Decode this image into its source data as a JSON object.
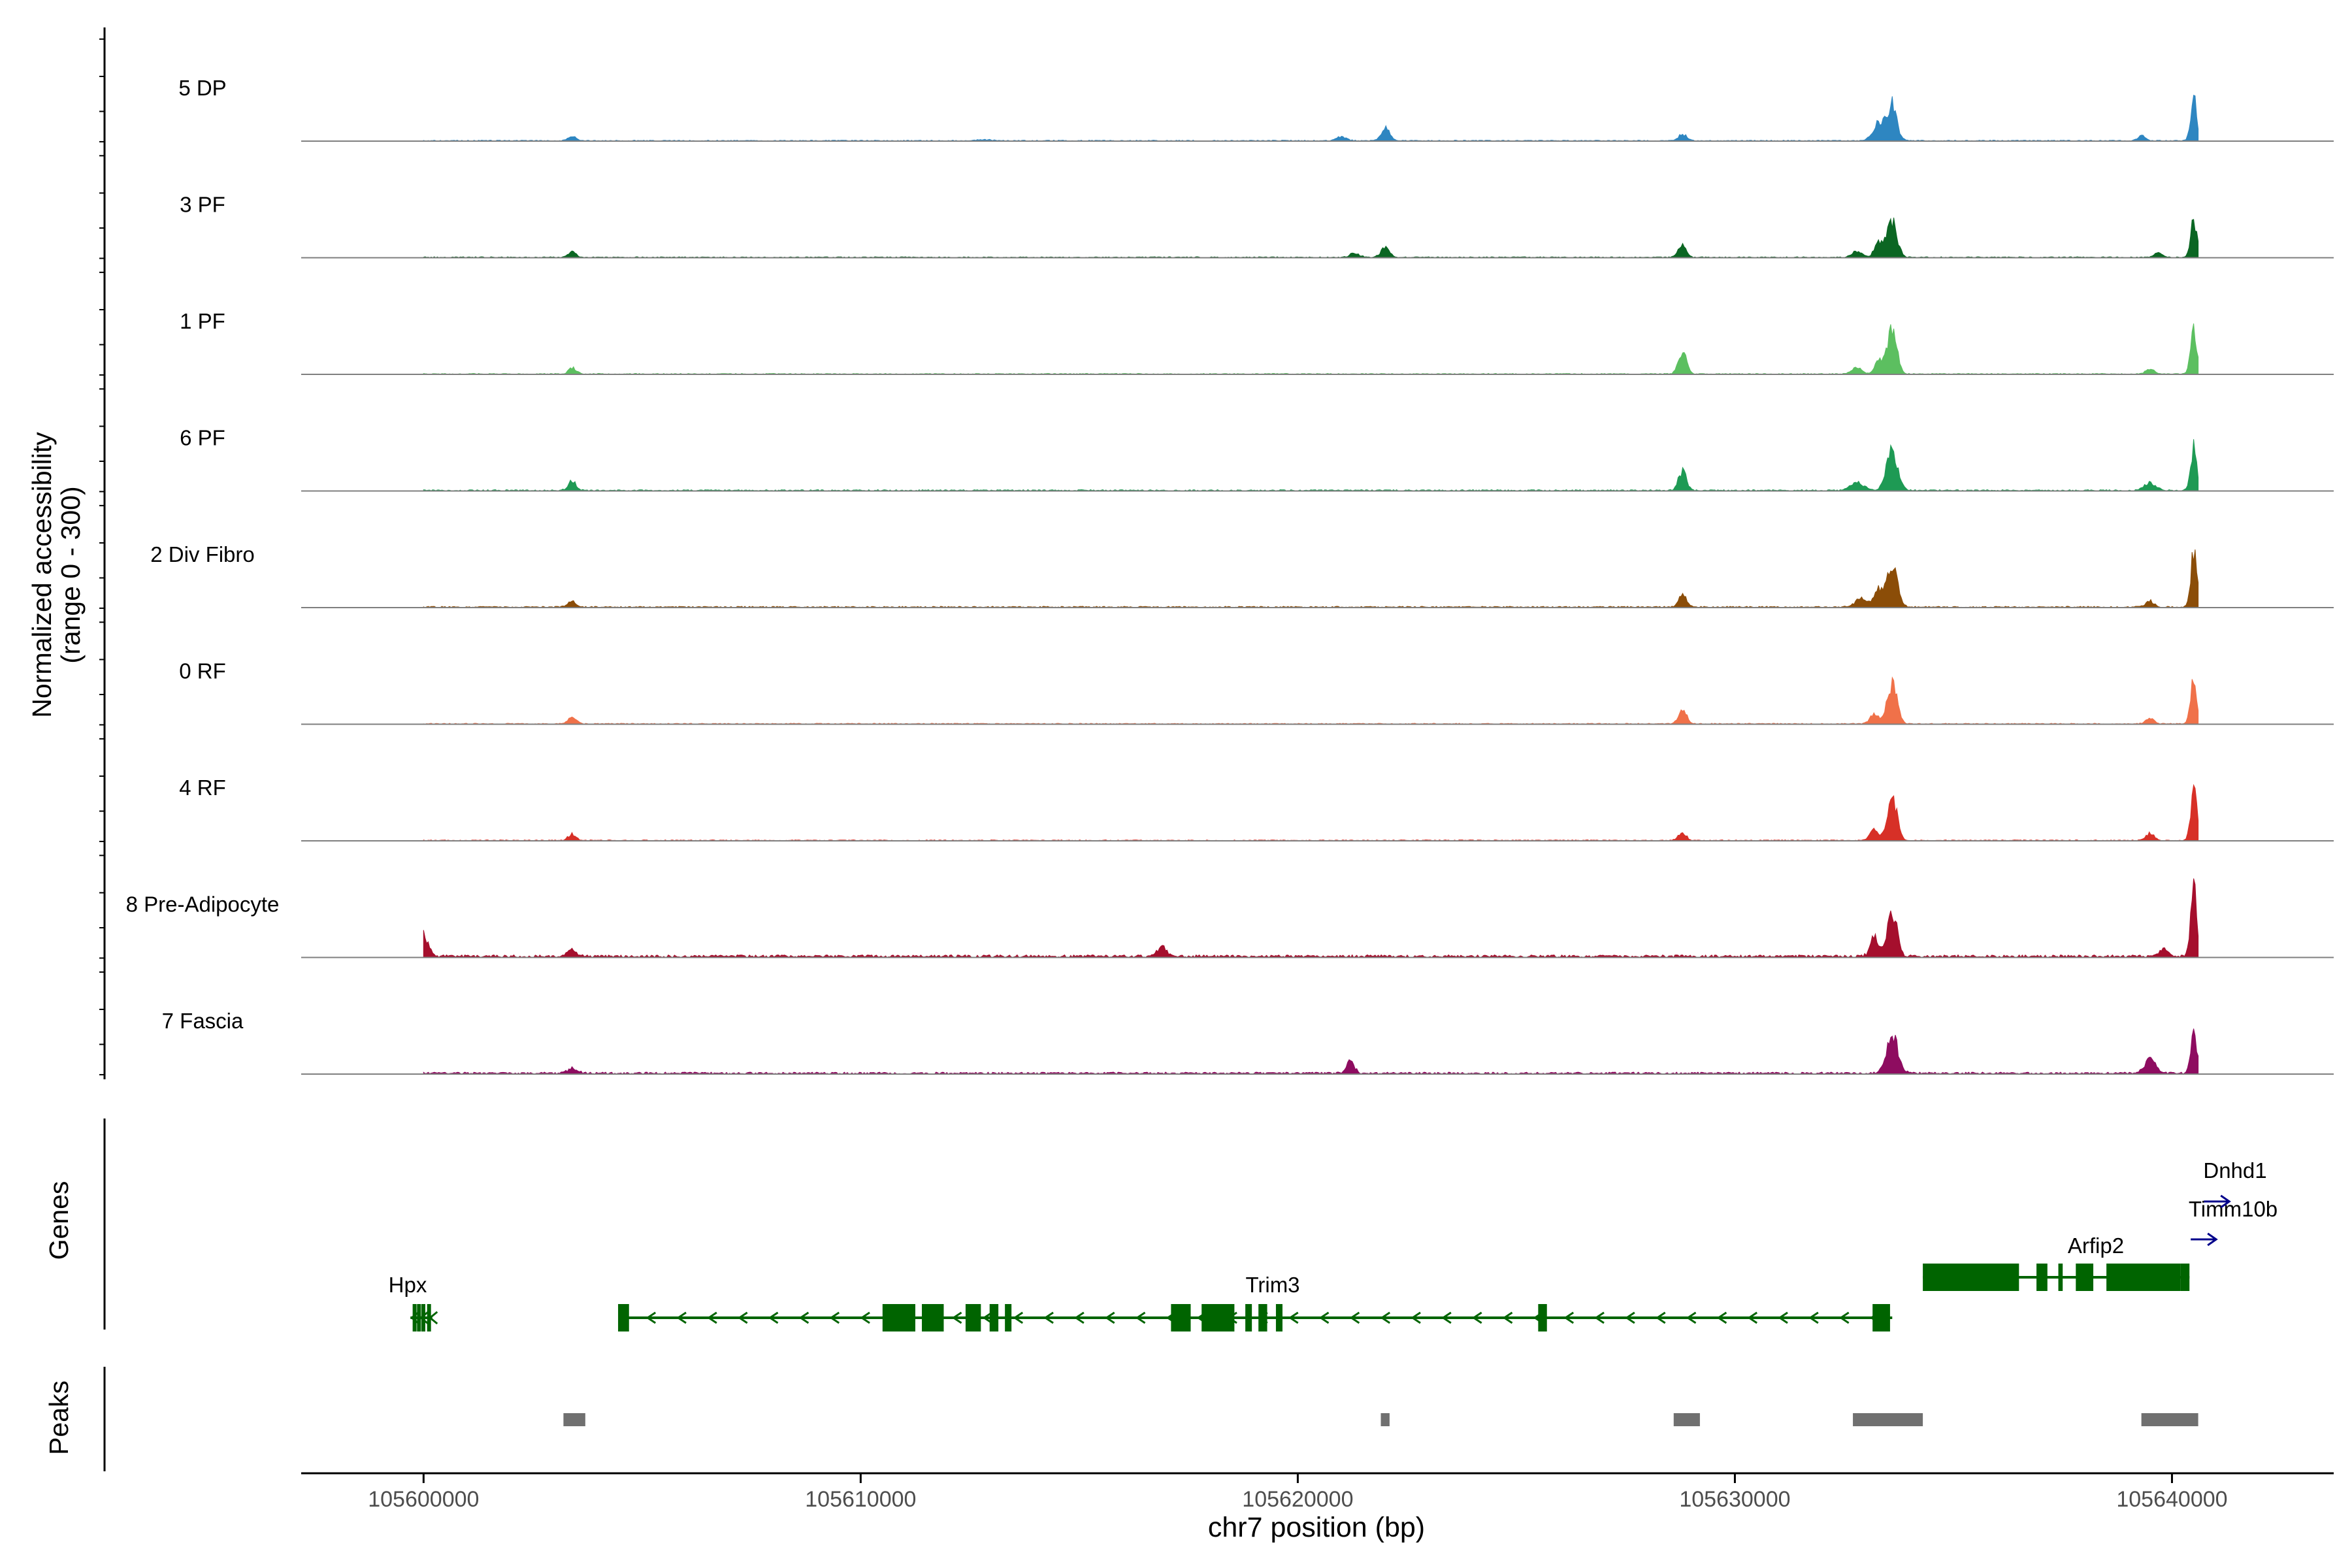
{
  "chart_data": {
    "type": "area",
    "title": "",
    "chromosome": "chr7",
    "region": [
      105597200,
      105643700
    ],
    "xlabel": "chr7 position (bp)",
    "ylabel_line1": "Normalized accessibility",
    "ylabel_line2": "(range 0 - 300)",
    "ylim": [
      0,
      300
    ],
    "x_ticks": [
      105600000,
      105610000,
      105620000,
      105630000,
      105640000
    ],
    "x_tick_labels": [
      "105600000",
      "105610000",
      "105620000",
      "105630000",
      "105640000"
    ],
    "baseline_noise": 3,
    "tracks": [
      {
        "name": "5 DP",
        "color": "#2E86C1",
        "noise": 3,
        "peaks": [
          [
            105603400,
            14,
            90
          ],
          [
            105612800,
            4,
            150
          ],
          [
            105621000,
            13,
            110
          ],
          [
            105622000,
            38,
            100
          ],
          [
            105628800,
            20,
            90
          ],
          [
            105633300,
            58,
            130
          ],
          [
            105633600,
            105,
            110
          ],
          [
            105639300,
            16,
            90
          ],
          [
            105640500,
            130,
            70
          ]
        ]
      },
      {
        "name": "3 PF",
        "color": "#0B6623",
        "noise": 3,
        "peaks": [
          [
            105603400,
            17,
            90
          ],
          [
            105621300,
            12,
            110
          ],
          [
            105622000,
            28,
            100
          ],
          [
            105628800,
            40,
            90
          ],
          [
            105632800,
            20,
            110
          ],
          [
            105633300,
            45,
            100
          ],
          [
            105633600,
            115,
            110
          ],
          [
            105639700,
            14,
            90
          ],
          [
            105640500,
            115,
            70
          ]
        ]
      },
      {
        "name": "1 PF",
        "color": "#5CBF60",
        "noise": 3,
        "peaks": [
          [
            105603400,
            18,
            90
          ],
          [
            105628800,
            65,
            90
          ],
          [
            105632800,
            20,
            110
          ],
          [
            105633300,
            40,
            100
          ],
          [
            105633600,
            128,
            110
          ],
          [
            105639500,
            16,
            90
          ],
          [
            105640500,
            135,
            70
          ]
        ]
      },
      {
        "name": "6 PF",
        "color": "#1E9A54",
        "noise": 4,
        "peaks": [
          [
            105603400,
            30,
            90
          ],
          [
            105628800,
            58,
            90
          ],
          [
            105632800,
            25,
            140
          ],
          [
            105633600,
            115,
            130
          ],
          [
            105639500,
            22,
            130
          ],
          [
            105640500,
            135,
            70
          ]
        ]
      },
      {
        "name": "2 Div Fibro",
        "color": "#8B4D08",
        "noise": 4,
        "peaks": [
          [
            105603400,
            18,
            90
          ],
          [
            105628800,
            38,
            90
          ],
          [
            105632900,
            25,
            140
          ],
          [
            105633300,
            50,
            100
          ],
          [
            105633600,
            125,
            120
          ],
          [
            105639500,
            18,
            90
          ],
          [
            105640500,
            170,
            70
          ]
        ]
      },
      {
        "name": "0 RF",
        "color": "#F07149",
        "noise": 3,
        "peaks": [
          [
            105603400,
            22,
            90
          ],
          [
            105628800,
            45,
            90
          ],
          [
            105633200,
            30,
            100
          ],
          [
            105633600,
            125,
            110
          ],
          [
            105639500,
            18,
            90
          ],
          [
            105640500,
            130,
            70
          ]
        ]
      },
      {
        "name": "4 RF",
        "color": "#D73027",
        "noise": 3,
        "peaks": [
          [
            105603400,
            20,
            90
          ],
          [
            105628800,
            22,
            90
          ],
          [
            105633200,
            30,
            100
          ],
          [
            105633600,
            130,
            110
          ],
          [
            105639500,
            22,
            90
          ],
          [
            105640500,
            150,
            70
          ]
        ]
      },
      {
        "name": "8 Pre-Adipocyte",
        "color": "#A50F2D",
        "noise": 8,
        "peaks": [
          [
            105600000,
            65,
            110
          ],
          [
            105603400,
            22,
            90
          ],
          [
            105616900,
            30,
            100
          ],
          [
            105633200,
            55,
            100
          ],
          [
            105633600,
            130,
            110
          ],
          [
            105639800,
            22,
            110
          ],
          [
            105640500,
            225,
            70
          ]
        ]
      },
      {
        "name": "7 Fascia",
        "color": "#8E0C60",
        "noise": 6,
        "peaks": [
          [
            105603400,
            14,
            120
          ],
          [
            105621200,
            35,
            90
          ],
          [
            105633600,
            120,
            130
          ],
          [
            105639500,
            40,
            130
          ],
          [
            105640500,
            125,
            70
          ]
        ]
      }
    ],
    "genes": [
      {
        "name": "Hpx",
        "strand": "-",
        "start": 105599700,
        "end": 105600200,
        "exons": [
          [
            105599750,
            105599780
          ],
          [
            105599850,
            105599880
          ],
          [
            105599950,
            105599980
          ],
          [
            105600080,
            105600110
          ]
        ]
      },
      {
        "name": "Trim3",
        "strand": "-",
        "start": 105604500,
        "end": 105633600,
        "exons": [
          [
            105604450,
            105604700
          ],
          [
            105610500,
            105611250
          ],
          [
            105611400,
            105611900
          ],
          [
            105612400,
            105612750
          ],
          [
            105612950,
            105613150
          ],
          [
            105613300,
            105613450
          ],
          [
            105617100,
            105617550
          ],
          [
            105617800,
            105618550
          ],
          [
            105618800,
            105618950
          ],
          [
            105619100,
            105619300
          ],
          [
            105619500,
            105619650
          ],
          [
            105625500,
            105625700
          ],
          [
            105633150,
            105633550
          ]
        ]
      },
      {
        "name": "Arfip2",
        "strand": "+",
        "start": 105634300,
        "end": 105640400,
        "exons": [
          [
            105634300,
            105636500
          ],
          [
            105636900,
            105637150
          ],
          [
            105637400,
            105637500
          ],
          [
            105637800,
            105638200
          ],
          [
            105638500,
            105640200
          ],
          [
            105640200,
            105640400
          ]
        ]
      },
      {
        "name": "Timm10b",
        "strand": "+",
        "start": 105640100,
        "end": 105640700,
        "exons": []
      },
      {
        "name": "Dnhd1",
        "strand": "+",
        "start": 105640400,
        "end": 105640700,
        "exons": []
      }
    ],
    "peaks_track": [
      [
        105603200,
        105603700
      ],
      [
        105621900,
        105622100
      ],
      [
        105628600,
        105629200
      ],
      [
        105632700,
        105634300
      ],
      [
        105639300,
        105640600
      ]
    ],
    "panel_labels": {
      "genes": "Genes",
      "peaks": "Peaks"
    }
  }
}
